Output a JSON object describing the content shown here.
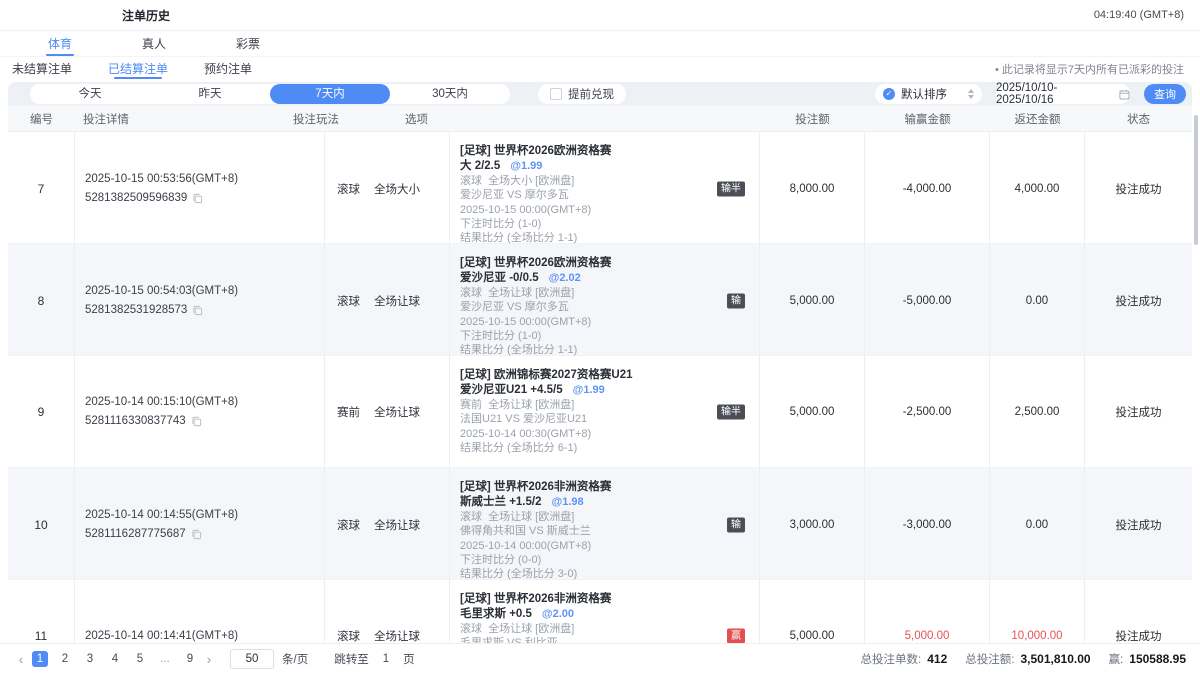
{
  "header": {
    "title": "注单历史",
    "time": "04:19:40 (GMT+8)"
  },
  "tabs": [
    {
      "label": "体育",
      "active": true
    },
    {
      "label": "真人",
      "active": false
    },
    {
      "label": "彩票",
      "active": false
    }
  ],
  "subtabs": [
    {
      "label": "未结算注单",
      "active": false
    },
    {
      "label": "已结算注单",
      "active": true
    },
    {
      "label": "预约注单",
      "active": false
    }
  ],
  "note": "• 此记录将显示7天内所有已派彩的投注",
  "filters": {
    "ranges": [
      {
        "label": "今天",
        "active": false
      },
      {
        "label": "昨天",
        "active": false
      },
      {
        "label": "7天内",
        "active": true
      },
      {
        "label": "30天内",
        "active": false
      }
    ],
    "checkbox_label": "提前兑现",
    "checkbox_checked": false,
    "sort_label": "默认排序",
    "date_range": "2025/10/10-2025/10/16",
    "query_label": "查询"
  },
  "table": {
    "columns": [
      "编号",
      "投注详情",
      "投注玩法",
      "选项",
      "投注额",
      "输赢金额",
      "返还金额",
      "状态"
    ],
    "rows": [
      {
        "id": "7",
        "time": "2025-10-15 00:53:56(GMT+8)",
        "ticket": "5281382509596839",
        "play_type": "滚球",
        "play_market": "全场大小",
        "option": {
          "league": "[足球] 世界杯2026欧洲资格赛",
          "pick": "大 2/2.5",
          "odds": "@1.99",
          "lines": [
            "滚球  全场大小 [欧洲盘]",
            "爱沙尼亚 VS 摩尔多瓦",
            "2025-10-15 00:00(GMT+8)",
            "下注时比分 (1-0)",
            "结果比分 (全场比分 1-1)"
          ]
        },
        "badge": {
          "label": "输半",
          "type": "lose"
        },
        "bet": "8,000.00",
        "winloss": "-4,000.00",
        "winloss_red": false,
        "refund": "4,000.00",
        "refund_red": false,
        "status": "投注成功",
        "zebra": false
      },
      {
        "id": "8",
        "time": "2025-10-15 00:54:03(GMT+8)",
        "ticket": "5281382531928573",
        "play_type": "滚球",
        "play_market": "全场让球",
        "option": {
          "league": "[足球] 世界杯2026欧洲资格赛",
          "pick": "爱沙尼亚 -0/0.5",
          "odds": "@2.02",
          "lines": [
            "滚球  全场让球 [欧洲盘]",
            "爱沙尼亚 VS 摩尔多瓦",
            "2025-10-15 00:00(GMT+8)",
            "下注时比分 (1-0)",
            "结果比分 (全场比分 1-1)"
          ]
        },
        "badge": {
          "label": "输",
          "type": "lose"
        },
        "bet": "5,000.00",
        "winloss": "-5,000.00",
        "winloss_red": false,
        "refund": "0.00",
        "refund_red": false,
        "status": "投注成功",
        "zebra": true
      },
      {
        "id": "9",
        "time": "2025-10-14 00:15:10(GMT+8)",
        "ticket": "5281116330837743",
        "play_type": "赛前",
        "play_market": "全场让球",
        "option": {
          "league": "[足球] 欧洲锦标赛2027资格赛U21",
          "pick": "爱沙尼亚U21 +4.5/5",
          "odds": "@1.99",
          "lines": [
            "赛前  全场让球 [欧洲盘]",
            "法国U21 VS 爱沙尼亚U21",
            "2025-10-14 00:30(GMT+8)",
            "结果比分 (全场比分 6-1)"
          ]
        },
        "badge": {
          "label": "输半",
          "type": "lose"
        },
        "bet": "5,000.00",
        "winloss": "-2,500.00",
        "winloss_red": false,
        "refund": "2,500.00",
        "refund_red": false,
        "status": "投注成功",
        "zebra": false
      },
      {
        "id": "10",
        "time": "2025-10-14 00:14:55(GMT+8)",
        "ticket": "5281116287775687",
        "play_type": "滚球",
        "play_market": "全场让球",
        "option": {
          "league": "[足球] 世界杯2026非洲资格赛",
          "pick": "斯威士兰 +1.5/2",
          "odds": "@1.98",
          "lines": [
            "滚球  全场让球 [欧洲盘]",
            "佛得角共和国 VS 斯威士兰",
            "2025-10-14 00:00(GMT+8)",
            "下注时比分 (0-0)",
            "结果比分 (全场比分 3-0)"
          ]
        },
        "badge": {
          "label": "输",
          "type": "lose"
        },
        "bet": "3,000.00",
        "winloss": "-3,000.00",
        "winloss_red": false,
        "refund": "0.00",
        "refund_red": false,
        "status": "投注成功",
        "zebra": true
      },
      {
        "id": "11",
        "time": "2025-10-14 00:14:41(GMT+8)",
        "ticket": "",
        "play_type": "滚球",
        "play_market": "全场让球",
        "option": {
          "league": "[足球] 世界杯2026非洲资格赛",
          "pick": "毛里求斯 +0.5",
          "odds": "@2.00",
          "lines": [
            "滚球  全场让球 [欧洲盘]",
            "毛里求斯 VS 利比亚"
          ]
        },
        "badge": {
          "label": "赢",
          "type": "win"
        },
        "bet": "5,000.00",
        "winloss": "5,000.00",
        "winloss_red": true,
        "refund": "10,000.00",
        "refund_red": true,
        "status": "投注成功",
        "zebra": false
      }
    ]
  },
  "pagination": {
    "prev": "‹",
    "next": "›",
    "pages": [
      "1",
      "2",
      "3",
      "4",
      "5",
      "...",
      "9"
    ],
    "active": "1",
    "page_size": "50",
    "unit_label": "条/页",
    "jump_label": "跳转至",
    "jump_page": "1",
    "page_label": "页"
  },
  "summary": [
    {
      "label": "总投注单数:",
      "value": "412"
    },
    {
      "label": "总投注额:",
      "value": "3,501,810.00"
    },
    {
      "label": "赢:",
      "value": "150588.95"
    }
  ],
  "colors": {
    "accent": "#4e8bf5",
    "win_red": "#e25050",
    "badge_lose": "#4b4e57"
  }
}
